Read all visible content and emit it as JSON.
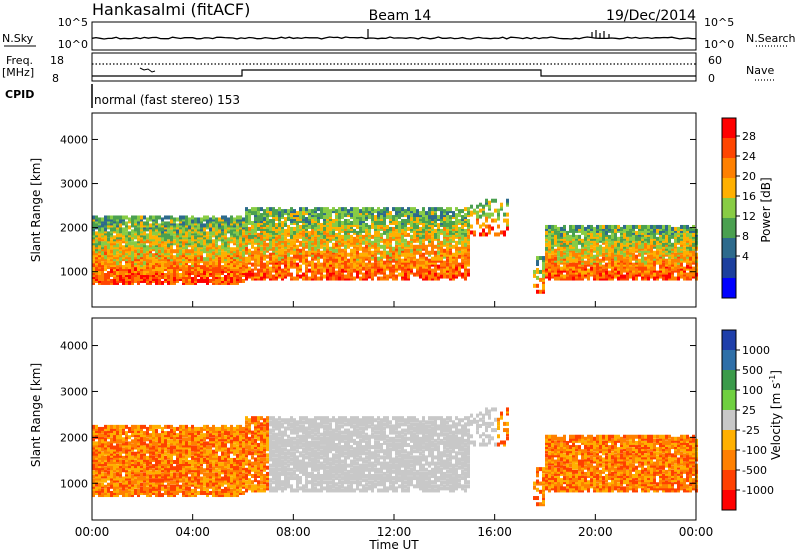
{
  "header": {
    "title": "Hankasalmi (fitACF)",
    "beam": "Beam 14",
    "date": "19/Dec/2014"
  },
  "noise_panel": {
    "left_label": "N.Sky",
    "left_ticks": [
      "10^5",
      "10^0"
    ],
    "right_ticks": [
      "10^5",
      "10^0"
    ],
    "right_label": "N.Search"
  },
  "freq_panel": {
    "left_label_1": "Freq.",
    "left_label_2": "[MHz]",
    "left_ticks": [
      "18",
      "8"
    ],
    "right_ticks": [
      "60",
      "0"
    ],
    "right_label": "Nave",
    "cpid_label": "CPID",
    "cpid_text": "normal (fast stereo) 153"
  },
  "chart_data": [
    {
      "type": "heatmap",
      "name": "power",
      "ylabel": "Slant Range [km]",
      "y_ticks": [
        "1000",
        "2000",
        "3000",
        "4000"
      ],
      "ylim": [
        200,
        4600
      ],
      "x_ticks": [
        "00:00",
        "04:00",
        "08:00",
        "12:00",
        "16:00",
        "20:00",
        "00:00"
      ],
      "xlim_hours": [
        0,
        24
      ],
      "colorbar": {
        "label": "Power [dB]",
        "ticks": [
          "28",
          "24",
          "20",
          "16",
          "12",
          "8",
          "4"
        ],
        "range": [
          0,
          30
        ],
        "colors_high_to_low": [
          "#ff0000",
          "#ff4500",
          "#ff8000",
          "#ffb000",
          "#88cc44",
          "#4aa050",
          "#2d6a8c",
          "#1c3f9e",
          "#0000ff"
        ]
      }
    },
    {
      "type": "heatmap",
      "name": "velocity",
      "ylabel": "Slant Range [km]",
      "y_ticks": [
        "1000",
        "2000",
        "3000",
        "4000"
      ],
      "ylim": [
        200,
        4600
      ],
      "x_ticks": [
        "00:00",
        "04:00",
        "08:00",
        "12:00",
        "16:00",
        "20:00",
        "00:00"
      ],
      "xlabel": "Time UT",
      "xlim_hours": [
        0,
        24
      ],
      "colorbar": {
        "label": "Velocity [m s^-1]",
        "ticks": [
          "1000",
          "500",
          "100",
          "25",
          "-25",
          "-100",
          "-500",
          "-1000"
        ],
        "colors_high_to_low": [
          "#1f3faa",
          "#2e6fa8",
          "#3a9a4a",
          "#6fd040",
          "#c8c8c8",
          "#ffb000",
          "#ff8000",
          "#ff4000",
          "#ff0000"
        ]
      }
    }
  ]
}
